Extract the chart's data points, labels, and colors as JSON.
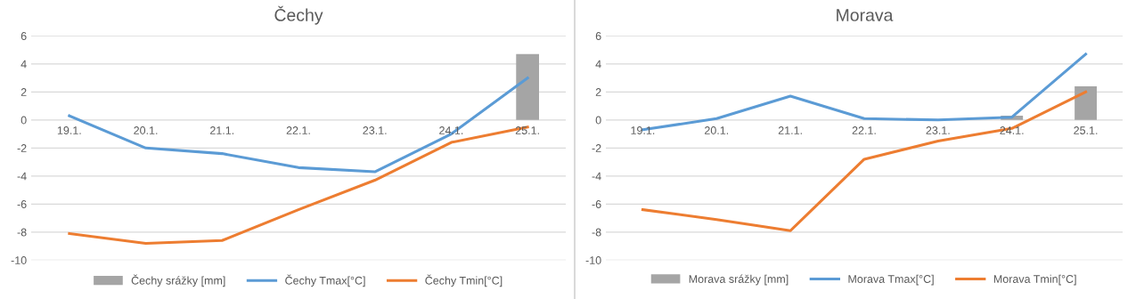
{
  "chart_data": [
    {
      "type": "line",
      "title": "Čechy",
      "categories": [
        "19.1.",
        "20.1.",
        "21.1.",
        "22.1.",
        "23.1.",
        "24.1.",
        "25.1."
      ],
      "ylim": [
        -10,
        6
      ],
      "yticks": [
        -10,
        -8,
        -6,
        -4,
        -2,
        0,
        2,
        4,
        6
      ],
      "grid": "y",
      "legend": "bottom",
      "series": [
        {
          "name": "Čechy srážky [mm]",
          "type": "bar",
          "color": "#a5a5a5",
          "values": [
            0,
            0,
            0,
            0,
            0,
            0,
            4.7
          ]
        },
        {
          "name": "Čechy Tmax[°C]",
          "color": "#5b9bd5",
          "values": [
            0.3,
            -2.0,
            -2.4,
            -3.4,
            -3.7,
            -1.0,
            3.0
          ]
        },
        {
          "name": "Čechy Tmin[°C]",
          "color": "#ed7d31",
          "values": [
            -8.1,
            -8.8,
            -8.6,
            -6.4,
            -4.3,
            -1.6,
            -0.5
          ]
        }
      ]
    },
    {
      "type": "line",
      "title": "Morava",
      "categories": [
        "19.1.",
        "20.1.",
        "21.1.",
        "22.1.",
        "23.1.",
        "24.1.",
        "25.1."
      ],
      "ylim": [
        -10,
        6
      ],
      "yticks": [
        -10,
        -8,
        -6,
        -4,
        -2,
        0,
        2,
        4,
        6
      ],
      "grid": "y",
      "legend": "bottom",
      "series": [
        {
          "name": "Morava srážky [mm]",
          "type": "bar",
          "color": "#a5a5a5",
          "values": [
            0,
            0,
            0,
            0,
            0,
            0.3,
            2.4
          ]
        },
        {
          "name": "Morava Tmax[°C]",
          "color": "#5b9bd5",
          "values": [
            -0.7,
            0.1,
            1.7,
            0.1,
            0.0,
            0.2,
            4.7
          ]
        },
        {
          "name": "Morava Tmin[°C]",
          "color": "#ed7d31",
          "values": [
            -6.4,
            -7.1,
            -7.9,
            -2.8,
            -1.5,
            -0.6,
            2.0
          ]
        }
      ]
    }
  ]
}
